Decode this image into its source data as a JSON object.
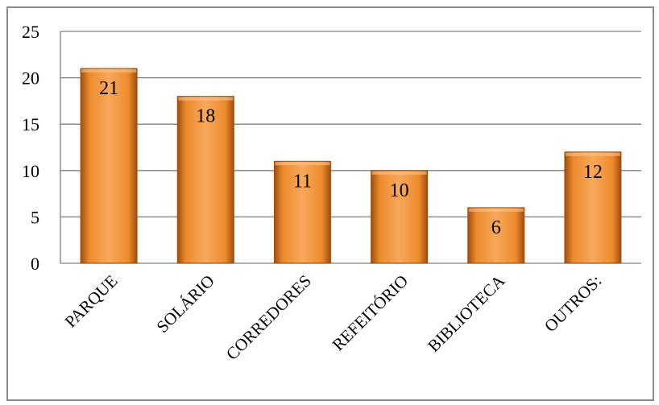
{
  "chart_data": {
    "type": "bar",
    "categories": [
      "PARQUE",
      "SOLÁRIO",
      "CORREDORES",
      "REFEITÓRIO",
      "BIBLIOTECA",
      "OUTROS:"
    ],
    "values": [
      21,
      18,
      11,
      10,
      6,
      12
    ],
    "data_labels": [
      "21",
      "18",
      "11",
      "10",
      "6",
      "12"
    ],
    "ylim": [
      0,
      25
    ],
    "yticks": [
      0,
      5,
      10,
      15,
      20,
      25
    ],
    "ytick_labels": [
      "0",
      "5",
      "10",
      "15",
      "20",
      "25"
    ],
    "grid": true,
    "legend": "none",
    "colors": {
      "bar_light": "#f8a85a",
      "bar_mid": "#ec8a2c",
      "bar_dark": "#9e4d10",
      "grid": "#7f7f7f"
    }
  }
}
